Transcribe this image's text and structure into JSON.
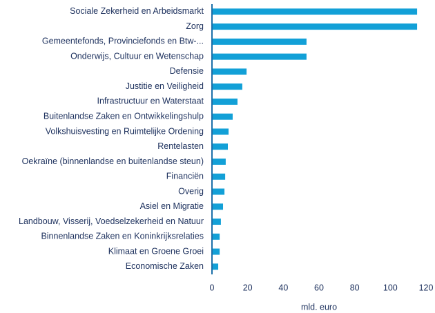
{
  "chart_data": {
    "type": "barh",
    "categories": [
      "Sociale Zekerheid en Arbeidsmarkt",
      "Zorg",
      "Gemeentefonds, Provinciefonds en Btw-...",
      "Onderwijs, Cultuur en Wetenschap",
      "Defensie",
      "Justitie en Veiligheid",
      "Infrastructuur en Waterstaat",
      "Buitenlandse Zaken en Ontwikkelingshulp",
      "Volkshuisvesting en Ruimtelijke Ordening",
      "Rentelasten",
      "Oekraïne (binnenlandse en buitenlandse steun)",
      "Financiën",
      "Overig",
      "Asiel en Migratie",
      "Landbouw, Visserij, Voedselzekerheid en Natuur",
      "Binnenlandse Zaken en Koninkrijksrelaties",
      "Klimaat en Groene Groei",
      "Economische Zaken"
    ],
    "values": [
      115,
      115,
      53,
      53,
      19.4,
      17,
      14.3,
      11.6,
      9.3,
      8.9,
      7.7,
      7.4,
      7,
      6.2,
      5,
      4.3,
      4.3,
      3.5
    ],
    "color": "#12a0d7",
    "xlabel": "mld. euro",
    "xlim": [
      0,
      120
    ],
    "xticks": [
      0,
      20,
      40,
      60,
      80,
      100,
      120
    ]
  }
}
